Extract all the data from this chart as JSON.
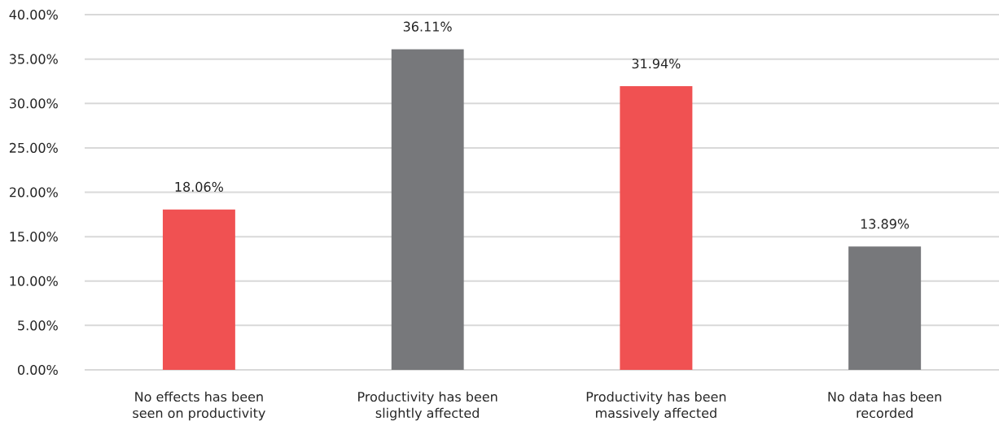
{
  "chart_data": {
    "type": "bar",
    "categories": [
      "No effects has been seen on productivity",
      "Productivity has been slightly affected",
      "Productivity has been massively affected",
      "No data has been recorded"
    ],
    "values": [
      18.06,
      36.11,
      31.94,
      13.89
    ],
    "colors": [
      "#f05152",
      "#77787b",
      "#f05152",
      "#77787b"
    ],
    "value_labels": [
      "18.06%",
      "36.11%",
      "31.94%",
      "13.89%"
    ],
    "ylim": [
      0,
      40
    ],
    "yticks": [
      {
        "value": 0,
        "label": "0.00%"
      },
      {
        "value": 5,
        "label": "5.00%"
      },
      {
        "value": 10,
        "label": "10.00%"
      },
      {
        "value": 15,
        "label": "15.00%"
      },
      {
        "value": 20,
        "label": "20.00%"
      },
      {
        "value": 25,
        "label": "25.00%"
      },
      {
        "value": 30,
        "label": "30.00%"
      },
      {
        "value": 35,
        "label": "35.00%"
      },
      {
        "value": 40,
        "label": "40.00%"
      }
    ],
    "grid": "y"
  }
}
